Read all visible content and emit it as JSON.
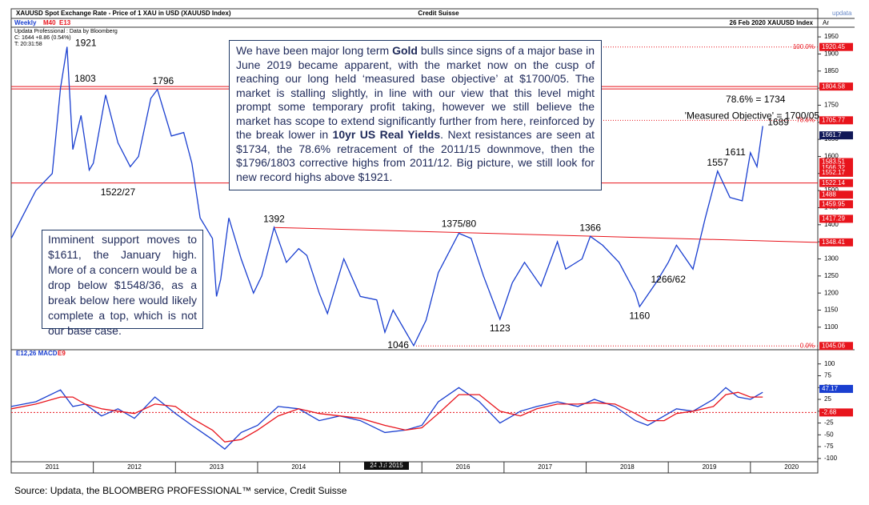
{
  "header": {
    "title": "XAUUSD Spot Exchange Rate - Price of 1 XAU in USD (XAUUSD Index)",
    "brand": "Credit Suisse",
    "logo": "updata",
    "axis_tag": "Ar",
    "period": "Weekly",
    "ma1": "M40",
    "ma2": "E13",
    "date_symbol": "26 Feb 2020  XAUUSD Index",
    "info": [
      "Updata Professional : Data by Bloomberg",
      "C: 1644 +8.86 (0.54%)",
      "T: 20:31:58"
    ]
  },
  "commentary": [
    "We have been major long term ",
    "Gold",
    " bulls since signs of a major base in June 2019 became apparent, with the market now on the cusp of reaching our long held ‘measured base objective’ at $1700/05. The market is stalling slightly,  in line with our view that this level might prompt some temporary profit taking, however we still believe the market has scope to extend significantly further from here, reinforced by the break lower in ",
    "10yr US Real  Yields",
    ". Next resistances are seen at $1734, the 78.6% retracement of the 2011/15 downmove, then the $1796/1803 corrective highs from 2011/12. Big picture, we still look for new record highs above $1921."
  ],
  "support_note": "Imminent support moves to $1611, the January high. More of a concern would be a drop below $1548/36, as a break below here would likely complete a top,  which is not our base case.",
  "date_marker": "24 Jul 2015",
  "source": "Source: Updata, the BLOOMBERG PROFESSIONAL™ service, Credit Suisse",
  "chart_data": [
    {
      "type": "line",
      "color": "#1a3fd0",
      "x": [
        2011.0,
        2011.3,
        2011.5,
        2011.6,
        2011.68,
        2011.75,
        2011.85,
        2011.95,
        2012.0,
        2012.15,
        2012.3,
        2012.45,
        2012.55,
        2012.7,
        2012.78,
        2012.95,
        2013.1,
        2013.2,
        2013.3,
        2013.45,
        2013.5,
        2013.55,
        2013.65,
        2013.8,
        2013.95,
        2014.05,
        2014.2,
        2014.35,
        2014.5,
        2014.6,
        2014.75,
        2014.85,
        2015.05,
        2015.25,
        2015.45,
        2015.55,
        2015.65,
        2015.9,
        2016.05,
        2016.2,
        2016.45,
        2016.6,
        2016.75,
        2016.95,
        2017.1,
        2017.25,
        2017.45,
        2017.65,
        2017.75,
        2017.95,
        2018.05,
        2018.2,
        2018.4,
        2018.6,
        2018.65,
        2018.85,
        2019.0,
        2019.1,
        2019.3,
        2019.45,
        2019.6,
        2019.75,
        2019.9,
        2020.0,
        2020.08,
        2020.15
      ],
      "values": [
        1360,
        1500,
        1550,
        1800,
        1921,
        1620,
        1720,
        1560,
        1580,
        1780,
        1640,
        1570,
        1600,
        1770,
        1796,
        1660,
        1670,
        1580,
        1420,
        1360,
        1190,
        1240,
        1420,
        1300,
        1200,
        1250,
        1392,
        1290,
        1330,
        1310,
        1200,
        1140,
        1300,
        1190,
        1180,
        1085,
        1150,
        1046,
        1120,
        1260,
        1375,
        1360,
        1250,
        1123,
        1230,
        1290,
        1220,
        1350,
        1270,
        1300,
        1366,
        1340,
        1290,
        1200,
        1160,
        1230,
        1290,
        1340,
        1270,
        1420,
        1557,
        1480,
        1470,
        1611,
        1570,
        1689
      ],
      "xlim": [
        2011.0,
        2020.82
      ],
      "ylim": [
        1034,
        1976
      ],
      "xticks": [
        {
          "value": 2011,
          "label": "2011"
        },
        {
          "value": 2012,
          "label": "2012"
        },
        {
          "value": 2013,
          "label": "2013"
        },
        {
          "value": 2014,
          "label": "2014"
        },
        {
          "value": 2015,
          "label": "2015"
        },
        {
          "value": 2016,
          "label": "2016"
        },
        {
          "value": 2017,
          "label": "2017"
        },
        {
          "value": 2018,
          "label": "2018"
        },
        {
          "value": 2019,
          "label": "2019"
        },
        {
          "value": 2020,
          "label": "2020"
        }
      ],
      "yticks": [
        1100,
        1150,
        1200,
        1250,
        1300,
        1350,
        1400,
        1450,
        1500,
        1550,
        1600,
        1650,
        1700,
        1750,
        1800,
        1850,
        1900,
        1950
      ],
      "levels": [
        {
          "value": 1920.45,
          "label": "100.0%",
          "style": "dotted"
        },
        {
          "value": 1804.58,
          "style": "double"
        },
        {
          "value": 1705.77,
          "label": "78.6%",
          "style": "dotted"
        },
        {
          "value": 1522.14,
          "style": "solid"
        },
        {
          "value": 1045.06,
          "label": "0.0%",
          "style": "dotted"
        }
      ],
      "trendline": {
        "x": [
          2014.2,
          2020.82
        ],
        "y": [
          1392,
          1348.41
        ]
      },
      "price_tags": [
        {
          "value": 1920.45,
          "color": "#e8141c"
        },
        {
          "value": 1804.58,
          "color": "#e8141c"
        },
        {
          "value": 1705.77,
          "color": "#e8141c"
        },
        {
          "value": 1661.7,
          "color": "#101858"
        },
        {
          "value": 1583.51,
          "color": "#e8141c"
        },
        {
          "value": 1566.32,
          "color": "#e8141c"
        },
        {
          "value": 1552.17,
          "color": "#e8141c"
        },
        {
          "value": 1522.14,
          "color": "#e8141c"
        },
        {
          "value": 1488,
          "color": "#e8141c"
        },
        {
          "value": 1459.95,
          "color": "#e8141c"
        },
        {
          "value": 1417.29,
          "color": "#e8141c"
        },
        {
          "value": 1348.41,
          "color": "#e8141c"
        },
        {
          "value": 1045.06,
          "color": "#e8141c"
        }
      ],
      "point_labels": [
        {
          "label": "1921",
          "x": 2011.72,
          "y": 1921,
          "position": "right"
        },
        {
          "label": "1803",
          "x": 2011.9,
          "y": 1803,
          "position": "above"
        },
        {
          "label": "1796",
          "x": 2012.85,
          "y": 1796,
          "position": "above"
        },
        {
          "label": "1522/27",
          "x": 2012.3,
          "y": 1522,
          "position": "below"
        },
        {
          "label": "1392",
          "x": 2014.2,
          "y": 1392,
          "position": "above"
        },
        {
          "label": "1375/80",
          "x": 2016.45,
          "y": 1378,
          "position": "above"
        },
        {
          "label": "1366",
          "x": 2018.05,
          "y": 1366,
          "position": "above"
        },
        {
          "label": "1046",
          "x": 2015.9,
          "y": 1046,
          "position": "left"
        },
        {
          "label": "1123",
          "x": 2016.95,
          "y": 1123,
          "position": "below"
        },
        {
          "label": "1160",
          "x": 2018.65,
          "y": 1160,
          "position": "below"
        },
        {
          "label": "1266/62",
          "x": 2019.0,
          "y": 1266,
          "position": "below"
        },
        {
          "label": "1557",
          "x": 2019.6,
          "y": 1557,
          "position": "above"
        },
        {
          "label": "1611",
          "x": 2020.0,
          "y": 1611,
          "position": "left"
        },
        {
          "label": "1689",
          "x": 2020.15,
          "y": 1689,
          "position": "right"
        }
      ],
      "notes": [
        {
          "label": "78.6%  =  1734",
          "x": 2019.7,
          "y": 1765
        },
        {
          "label": "'Measured Objective'  =  1700/05",
          "x": 2019.2,
          "y": 1718
        }
      ]
    },
    {
      "type": "line",
      "x": [
        2011.0,
        2011.3,
        2011.6,
        2011.75,
        2011.9,
        2012.1,
        2012.3,
        2012.5,
        2012.75,
        2013.0,
        2013.2,
        2013.45,
        2013.6,
        2013.8,
        2014.0,
        2014.25,
        2014.5,
        2014.75,
        2015.0,
        2015.25,
        2015.55,
        2015.8,
        2016.0,
        2016.2,
        2016.45,
        2016.7,
        2016.95,
        2017.2,
        2017.4,
        2017.65,
        2017.9,
        2018.1,
        2018.35,
        2018.6,
        2018.75,
        2018.95,
        2019.1,
        2019.3,
        2019.55,
        2019.7,
        2019.85,
        2020.0,
        2020.15
      ],
      "series": [
        {
          "name": "E12,26 MACD",
          "color": "#1a3fd0",
          "values": [
            10,
            20,
            45,
            10,
            15,
            -10,
            5,
            -15,
            30,
            -5,
            -30,
            -60,
            -80,
            -45,
            -30,
            10,
            5,
            -20,
            -10,
            -20,
            -45,
            -40,
            -30,
            20,
            50,
            20,
            -25,
            0,
            10,
            20,
            10,
            25,
            10,
            -20,
            -30,
            -10,
            5,
            0,
            25,
            50,
            30,
            25,
            40
          ]
        },
        {
          "name": "E9",
          "color": "#e8141c",
          "values": [
            5,
            15,
            30,
            30,
            15,
            5,
            0,
            -5,
            15,
            10,
            -15,
            -40,
            -65,
            -60,
            -40,
            -10,
            5,
            -5,
            -10,
            -15,
            -30,
            -40,
            -35,
            -5,
            35,
            35,
            0,
            -10,
            5,
            15,
            15,
            18,
            15,
            -5,
            -20,
            -20,
            -5,
            0,
            10,
            35,
            40,
            30,
            30
          ]
        }
      ],
      "xlim": [
        2011.0,
        2020.82
      ],
      "ylim": [
        -107,
        130
      ],
      "yticks": [
        -100,
        -75,
        -50,
        -25,
        0,
        25,
        50,
        75,
        100
      ],
      "levels": [
        {
          "value": -2.68,
          "style": "dashed"
        }
      ],
      "price_tags": [
        {
          "value": 47.17,
          "color": "#1a3fd0"
        },
        {
          "value": -2.68,
          "color": "#e8141c"
        }
      ]
    }
  ]
}
